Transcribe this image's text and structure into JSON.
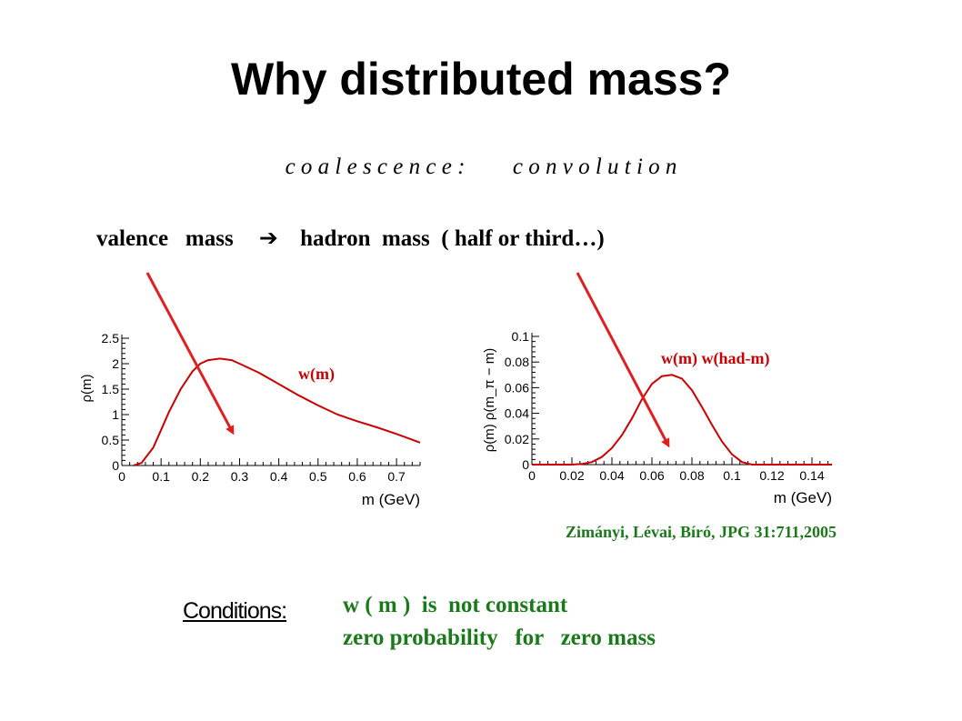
{
  "slide": {
    "title": "Why distributed mass?",
    "subtitle_left": "c o a l e s c e n c e :",
    "subtitle_right": "c o n v o l u t i o n",
    "mass_line": {
      "left": "valence   mass",
      "arrow": "➔",
      "right": "hadron  mass  ( half or third…)"
    },
    "citation": "Zimányi, Lévai, Bíró, JPG 31:711,2005",
    "conditions_label": "Conditions:",
    "conditions": [
      "w ( m )  is  not constant",
      "zero probability   for   zero mass"
    ],
    "colors": {
      "curve": "#cc0000",
      "arrow": "#e02020",
      "green_text": "#1a7a1a"
    }
  },
  "chart_data": [
    {
      "type": "line",
      "ylabel": "ρ(m)",
      "xlabel": "m (GeV)",
      "curve_label": "w(m)",
      "xlim": [
        0,
        0.76
      ],
      "ylim": [
        0,
        2.5
      ],
      "xticks": [
        "0",
        "0.1",
        "0.2",
        "0.3",
        "0.4",
        "0.5",
        "0.6",
        "0.7"
      ],
      "yticks": [
        "0",
        "0.5",
        "1",
        "1.5",
        "2",
        "2.5"
      ],
      "x": [
        0.03,
        0.05,
        0.08,
        0.1,
        0.12,
        0.15,
        0.18,
        0.2,
        0.22,
        0.25,
        0.28,
        0.3,
        0.35,
        0.4,
        0.45,
        0.5,
        0.55,
        0.6,
        0.65,
        0.7,
        0.76
      ],
      "y": [
        0.0,
        0.05,
        0.35,
        0.7,
        1.05,
        1.5,
        1.85,
        2.0,
        2.07,
        2.1,
        2.07,
        2.0,
        1.82,
        1.6,
        1.38,
        1.18,
        1.0,
        0.87,
        0.75,
        0.62,
        0.45
      ]
    },
    {
      "type": "line",
      "ylabel": "ρ(m) ρ(m_π − m)",
      "xlabel": "m (GeV)",
      "curve_label": "w(m) w(had-m)",
      "xlim": [
        0,
        0.15
      ],
      "ylim": [
        0,
        0.1
      ],
      "xticks": [
        "0",
        "0.02",
        "0.04",
        "0.06",
        "0.08",
        "0.1",
        "0.12",
        "0.14"
      ],
      "yticks": [
        "0",
        "0.02",
        "0.04",
        "0.06",
        "0.08",
        "0.1"
      ],
      "x": [
        0.0,
        0.02,
        0.025,
        0.03,
        0.035,
        0.04,
        0.045,
        0.05,
        0.055,
        0.06,
        0.065,
        0.07,
        0.075,
        0.08,
        0.085,
        0.09,
        0.095,
        0.1,
        0.105,
        0.11,
        0.115,
        0.15
      ],
      "y": [
        0.0,
        0.0,
        0.0005,
        0.002,
        0.006,
        0.013,
        0.023,
        0.036,
        0.051,
        0.063,
        0.069,
        0.07,
        0.067,
        0.058,
        0.045,
        0.031,
        0.018,
        0.008,
        0.002,
        0.0,
        0.0,
        0.0
      ]
    }
  ]
}
